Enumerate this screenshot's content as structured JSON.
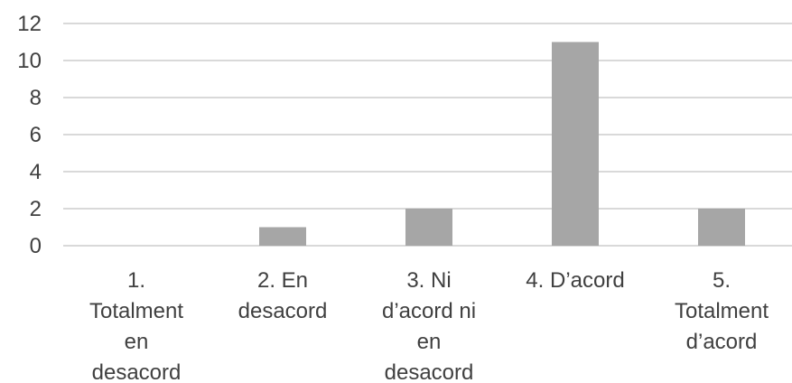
{
  "chart_data": {
    "type": "bar",
    "title": "",
    "xlabel": "",
    "ylabel": "",
    "categories": [
      [
        "1.",
        "Totalment",
        "en",
        "desacord"
      ],
      [
        "2.  En",
        "desacord"
      ],
      [
        "3.  Ni",
        "d’acord ni",
        "en",
        "desacord"
      ],
      [
        "4.  D’acord"
      ],
      [
        "5.",
        "Totalment",
        "d’acord"
      ]
    ],
    "values": [
      0,
      1,
      2,
      11,
      2
    ],
    "yticks": [
      "0",
      "2",
      "4",
      "6",
      "8",
      "10",
      "12"
    ],
    "ylim": [
      0,
      12
    ],
    "grid": true,
    "bar_color": "#a6a6a6",
    "grid_color": "#d9d9d9",
    "text_color": "#404040"
  }
}
